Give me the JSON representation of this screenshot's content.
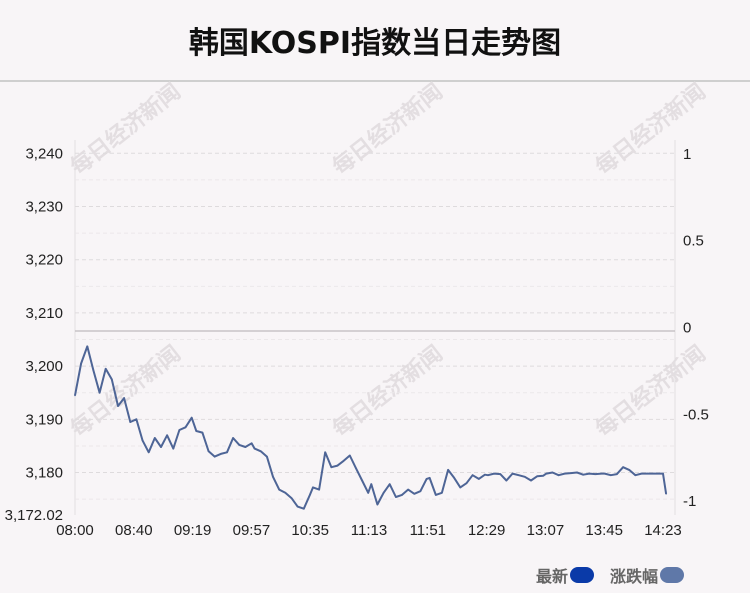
{
  "title": "韩国KOSPI指数当日走势图",
  "watermark": "每日经济新闻",
  "legend": [
    {
      "label": "最新",
      "color": "#0a3aa8"
    },
    {
      "label": "涨跌幅",
      "color": "#5f78a8"
    }
  ],
  "line_color": "#4e6596",
  "chart_data": {
    "type": "line",
    "title": "韩国KOSPI指数当日走势图",
    "xlabel": "",
    "ylabel": "",
    "x_ticks": [
      "08:00",
      "08:40",
      "09:19",
      "09:57",
      "10:35",
      "11:13",
      "11:51",
      "12:29",
      "13:07",
      "13:45",
      "14:23"
    ],
    "y_ticks": [
      "3,240",
      "3,230",
      "3,220",
      "3,210",
      "3,200",
      "3,190",
      "3,180"
    ],
    "y_min_label": "3,172.02",
    "y2_ticks": [
      "1",
      "0.5",
      "0",
      "-0.5",
      "-1"
    ],
    "ylim": [
      3172.02,
      3242.5
    ],
    "y2lim": [
      -1.08,
      1.08
    ],
    "baseline": 3206.6,
    "grid": true,
    "legend_position": "bottom-right",
    "series": [
      {
        "name": "最新",
        "x": [
          "08:00",
          "08:04",
          "08:08",
          "08:12",
          "08:16",
          "08:20",
          "08:24",
          "08:28",
          "08:32",
          "08:36",
          "08:40",
          "08:44",
          "08:48",
          "08:52",
          "08:56",
          "09:00",
          "09:04",
          "09:08",
          "09:12",
          "09:16",
          "09:19",
          "09:23",
          "09:27",
          "09:31",
          "09:35",
          "09:39",
          "09:43",
          "09:47",
          "09:51",
          "09:55",
          "09:57",
          "10:01",
          "10:05",
          "10:09",
          "10:13",
          "10:17",
          "10:21",
          "10:25",
          "10:29",
          "10:33",
          "10:35",
          "10:39",
          "10:43",
          "10:47",
          "10:51",
          "10:55",
          "10:59",
          "11:03",
          "11:07",
          "11:11",
          "11:13",
          "11:17",
          "11:21",
          "11:25",
          "11:29",
          "11:33",
          "11:37",
          "11:41",
          "11:45",
          "11:49",
          "11:51",
          "11:55",
          "11:59",
          "12:03",
          "12:07",
          "12:11",
          "12:15",
          "12:19",
          "12:23",
          "12:27",
          "12:29",
          "12:33",
          "12:37",
          "12:41",
          "12:45",
          "12:49",
          "12:53",
          "12:57",
          "13:01",
          "13:05",
          "13:07",
          "13:11",
          "13:15",
          "13:19",
          "13:23",
          "13:27",
          "13:31",
          "13:35",
          "13:39",
          "13:43",
          "13:45",
          "13:49",
          "13:53",
          "13:57",
          "14:01",
          "14:05",
          "14:09",
          "14:13",
          "14:17",
          "14:21",
          "14:23",
          "14:25"
        ],
        "y": [
          3194.5,
          3200.5,
          3203.7,
          3199.2,
          3195.0,
          3199.5,
          3197.5,
          3192.5,
          3194.0,
          3189.5,
          3190.0,
          3186.0,
          3183.8,
          3186.5,
          3184.8,
          3187.0,
          3184.5,
          3188.0,
          3188.5,
          3190.3,
          3187.8,
          3187.5,
          3184.0,
          3183.0,
          3183.5,
          3183.8,
          3186.5,
          3185.2,
          3184.8,
          3185.5,
          3184.5,
          3184.0,
          3183.0,
          3179.2,
          3176.8,
          3176.2,
          3175.2,
          3173.6,
          3173.2,
          3175.8,
          3177.2,
          3176.8,
          3183.8,
          3181.0,
          3181.3,
          3182.2,
          3183.2,
          3180.8,
          3178.5,
          3176.2,
          3177.8,
          3174.0,
          3176.2,
          3177.8,
          3175.4,
          3175.8,
          3176.8,
          3176.0,
          3176.5,
          3178.8,
          3179.0,
          3175.8,
          3176.2,
          3180.5,
          3179.0,
          3177.2,
          3178.0,
          3179.5,
          3178.8,
          3179.6,
          3179.5,
          3179.8,
          3179.7,
          3178.5,
          3179.8,
          3179.5,
          3179.2,
          3178.5,
          3179.3,
          3179.4,
          3179.8,
          3180.0,
          3179.5,
          3179.8,
          3179.9,
          3180.0,
          3179.6,
          3179.8,
          3179.7,
          3179.8,
          3179.8,
          3179.5,
          3179.7,
          3181.0,
          3180.5,
          3179.5,
          3179.8,
          3179.8,
          3179.8,
          3179.8,
          3179.8,
          3176.0
        ]
      }
    ]
  }
}
